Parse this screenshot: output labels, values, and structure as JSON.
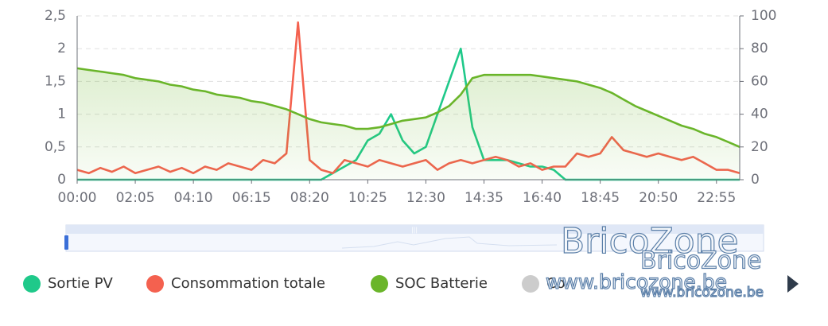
{
  "chart_data": {
    "type": "line",
    "categories": [
      "00:00",
      null,
      null,
      null,
      null,
      "02:05",
      null,
      null,
      null,
      null,
      "04:10",
      null,
      null,
      null,
      null,
      "06:15",
      null,
      null,
      null,
      null,
      "08:20",
      null,
      null,
      null,
      null,
      "10:25",
      null,
      null,
      null,
      null,
      "12:30",
      null,
      null,
      null,
      null,
      "14:35",
      null,
      null,
      null,
      null,
      "16:40",
      null,
      null,
      null,
      null,
      "18:45",
      null,
      null,
      null,
      null,
      "20:50",
      null,
      null,
      null,
      null,
      "22:55",
      null,
      null
    ],
    "ylim": [
      0,
      2.5
    ],
    "yticks": [
      0,
      {
        "value": 0.5,
        "label": "0,5"
      },
      1,
      {
        "value": 1.5,
        "label": "1,5"
      },
      2,
      {
        "value": 2.5,
        "label": "2,5"
      }
    ],
    "y2lim": [
      0,
      100
    ],
    "y2ticks": [
      0,
      20,
      40,
      60,
      80,
      100
    ],
    "grid": true,
    "legend": "bottom",
    "series": [
      {
        "name": "Sortie PV",
        "color": "#1fc98a",
        "values": [
          0,
          0,
          0,
          0,
          0,
          0,
          0,
          0,
          0,
          0,
          0,
          0,
          0,
          0,
          0,
          0,
          0,
          0,
          0,
          0,
          0,
          0,
          0.1,
          0.2,
          0.3,
          0.6,
          0.7,
          1.0,
          0.6,
          0.4,
          0.5,
          1.0,
          1.5,
          2.0,
          0.8,
          0.3,
          0.3,
          0.3,
          0.25,
          0.2,
          0.2,
          0.15,
          0,
          0,
          0,
          0,
          0,
          0,
          0,
          0,
          0,
          0,
          0,
          0,
          0,
          0,
          0,
          0
        ]
      },
      {
        "name": "Consommation totale",
        "color": "#f4614f",
        "values": [
          0.15,
          0.1,
          0.18,
          0.12,
          0.2,
          0.1,
          0.15,
          0.2,
          0.12,
          0.18,
          0.1,
          0.2,
          0.15,
          0.25,
          0.2,
          0.15,
          0.3,
          0.25,
          0.4,
          2.4,
          0.3,
          0.15,
          0.1,
          0.3,
          0.25,
          0.2,
          0.3,
          0.25,
          0.2,
          0.25,
          0.3,
          0.15,
          0.25,
          0.3,
          0.25,
          0.3,
          0.35,
          0.3,
          0.2,
          0.25,
          0.15,
          0.2,
          0.2,
          0.4,
          0.35,
          0.4,
          0.65,
          0.45,
          0.4,
          0.35,
          0.4,
          0.35,
          0.3,
          0.35,
          0.25,
          0.15,
          0.15,
          0.1
        ]
      },
      {
        "name": "SOC Batterie",
        "color": "#6ab52a",
        "axis": "y2",
        "area": true,
        "values": [
          68,
          67,
          66,
          65,
          64,
          62,
          61,
          60,
          58,
          57,
          55,
          54,
          52,
          51,
          50,
          48,
          47,
          45,
          43,
          40,
          37,
          35,
          34,
          33,
          31,
          31,
          32,
          34,
          36,
          37,
          38,
          41,
          45,
          52,
          62,
          64,
          64,
          64,
          64,
          64,
          63,
          62,
          61,
          60,
          58,
          56,
          53,
          49,
          45,
          42,
          39,
          36,
          33,
          31,
          28,
          26,
          23,
          20
        ]
      }
    ],
    "hidden_series": [
      {
        "name": "Co",
        "color": "#cccccc"
      }
    ],
    "watermark": [
      "BricoZone",
      "BricoZone",
      "www.bricozone.be",
      "www.bricozone.be"
    ]
  }
}
